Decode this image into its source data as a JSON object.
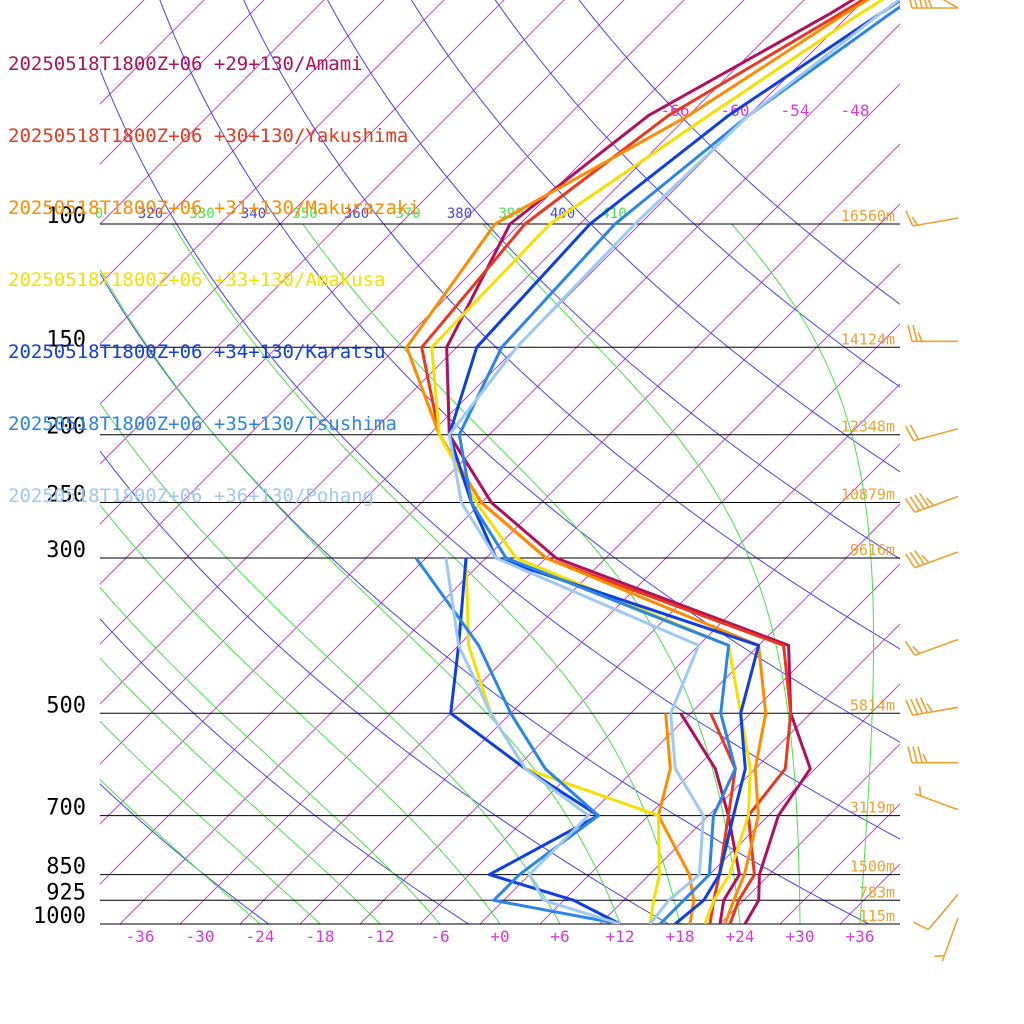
{
  "chart_data": {
    "type": "line",
    "chart_kind": "skew-T log-p sounding",
    "title": "",
    "legend_placement": "top-left",
    "series": [
      {
        "name": "20250518T1800Z+06 +29+130/Amami",
        "color": "#b0105a",
        "temperature": [
          [
            1000,
            24.5
          ],
          [
            925,
            23.5
          ],
          [
            850,
            21.0
          ],
          [
            700,
            17.0
          ],
          [
            600,
            15.5
          ],
          [
            500,
            8.0
          ],
          [
            400,
            1.0
          ],
          [
            300,
            -31.0
          ],
          [
            250,
            -43.0
          ],
          [
            200,
            -54.0
          ],
          [
            150,
            -63.0
          ],
          [
            100,
            -69.0
          ],
          [
            70,
            -66.0
          ],
          [
            50,
            -58.0
          ],
          [
            30,
            -48.0
          ],
          [
            20,
            -40.0
          ]
        ],
        "dewpoint": [
          [
            1000,
            22.0
          ],
          [
            925,
            20.0
          ],
          [
            850,
            19.0
          ],
          [
            700,
            12.0
          ],
          [
            600,
            6.0
          ],
          [
            500,
            -3.0
          ]
        ]
      },
      {
        "name": "20250518T1800Z+06 +30+130/Yakushima",
        "color": "#e8381f",
        "temperature": [
          [
            1000,
            23.0
          ],
          [
            925,
            21.5
          ],
          [
            850,
            20.5
          ],
          [
            700,
            14.0
          ],
          [
            600,
            13.0
          ],
          [
            500,
            8.0
          ],
          [
            400,
            0.5
          ],
          [
            300,
            -32.0
          ],
          [
            250,
            -44.0
          ],
          [
            200,
            -55.0
          ],
          [
            150,
            -65.5
          ],
          [
            100,
            -67.5
          ],
          [
            70,
            -64.0
          ],
          [
            50,
            -57.0
          ],
          [
            30,
            -47.0
          ],
          [
            20,
            -39.0
          ]
        ],
        "dewpoint": [
          [
            1000,
            21.0
          ],
          [
            925,
            19.0
          ],
          [
            850,
            17.0
          ],
          [
            700,
            12.0
          ],
          [
            600,
            8.0
          ],
          [
            500,
            0.0
          ]
        ]
      },
      {
        "name": "20250518T1800Z+06 +31+130/Makurazaki",
        "color": "#ff8c00",
        "temperature": [
          [
            1000,
            22.5
          ],
          [
            925,
            21.0
          ],
          [
            850,
            19.5
          ],
          [
            700,
            15.0
          ],
          [
            600,
            10.0
          ],
          [
            500,
            5.5
          ],
          [
            400,
            -2.0
          ],
          [
            300,
            -32.0
          ],
          [
            250,
            -44.0
          ],
          [
            200,
            -55.0
          ],
          [
            150,
            -67.0
          ],
          [
            100,
            -70.5
          ],
          [
            70,
            -62.0
          ],
          [
            50,
            -56.5
          ],
          [
            30,
            -47.0
          ],
          [
            20,
            -39.0
          ]
        ],
        "dewpoint": [
          [
            1000,
            19.0
          ],
          [
            925,
            17.0
          ],
          [
            850,
            14.0
          ],
          [
            700,
            5.0
          ],
          [
            600,
            1.5
          ],
          [
            500,
            -4.5
          ]
        ]
      },
      {
        "name": "20250518T1800Z+06 +33+130/Amakusa",
        "color": "#f5e000",
        "temperature": [
          [
            1000,
            20.5
          ],
          [
            925,
            19.0
          ],
          [
            850,
            18.0
          ],
          [
            700,
            14.0
          ],
          [
            600,
            9.5
          ],
          [
            500,
            3.0
          ],
          [
            400,
            -5.0
          ],
          [
            300,
            -35.0
          ],
          [
            250,
            -44.5
          ],
          [
            200,
            -55.0
          ],
          [
            150,
            -64.5
          ],
          [
            100,
            -65.0
          ],
          [
            70,
            -60.0
          ],
          [
            50,
            -55.0
          ],
          [
            30,
            -46.0
          ],
          [
            20,
            -38.0
          ]
        ],
        "dewpoint": [
          [
            1000,
            15.0
          ],
          [
            925,
            13.0
          ],
          [
            850,
            11.0
          ],
          [
            700,
            5.0
          ],
          [
            600,
            -13.0
          ],
          [
            500,
            -22.0
          ],
          [
            400,
            -31.0
          ],
          [
            300,
            -40.0
          ]
        ]
      },
      {
        "name": "20250518T1800Z+06 +34+130/Karatsu",
        "color": "#0f3fe0",
        "temperature": [
          [
            1000,
            17.5
          ],
          [
            925,
            18.0
          ],
          [
            850,
            17.0
          ],
          [
            700,
            12.5
          ],
          [
            600,
            9.0
          ],
          [
            500,
            3.0
          ],
          [
            400,
            -2.0
          ],
          [
            300,
            -37.0
          ],
          [
            250,
            -45.0
          ],
          [
            200,
            -54.0
          ],
          [
            150,
            -60.0
          ],
          [
            100,
            -61.0
          ],
          [
            70,
            -58.0
          ],
          [
            50,
            -53.0
          ],
          [
            30,
            -45.0
          ],
          [
            20,
            -37.5
          ]
        ],
        "dewpoint": [
          [
            1000,
            12.0
          ],
          [
            925,
            5.0
          ],
          [
            850,
            -6.0
          ],
          [
            700,
            -1.0
          ],
          [
            600,
            -13.0
          ],
          [
            500,
            -26.0
          ],
          [
            400,
            -32.0
          ],
          [
            300,
            -40.0
          ]
        ]
      },
      {
        "name": "20250518T1800Z+06 +35+130/Tsushima",
        "color": "#2a85e8",
        "temperature": [
          [
            1000,
            16.0
          ],
          [
            925,
            16.0
          ],
          [
            850,
            16.0
          ],
          [
            700,
            10.5
          ],
          [
            600,
            8.0
          ],
          [
            500,
            1.0
          ],
          [
            400,
            -5.0
          ],
          [
            300,
            -36.0
          ],
          [
            250,
            -45.0
          ],
          [
            200,
            -53.0
          ],
          [
            150,
            -57.5
          ],
          [
            100,
            -58.5
          ],
          [
            70,
            -56.0
          ],
          [
            50,
            -52.0
          ],
          [
            30,
            -45.0
          ],
          [
            20,
            -38.0
          ]
        ],
        "dewpoint": [
          [
            1000,
            12.0
          ],
          [
            925,
            -3.0
          ],
          [
            850,
            -3.0
          ],
          [
            700,
            -1.0
          ],
          [
            600,
            -11.0
          ],
          [
            500,
            -20.0
          ],
          [
            400,
            -30.0
          ],
          [
            300,
            -45.0
          ]
        ]
      },
      {
        "name": "20250518T1800Z+06 +36+130/Pohang",
        "color": "#9ec9f2",
        "temperature": [
          [
            1000,
            15.0
          ],
          [
            925,
            14.5
          ],
          [
            850,
            15.0
          ],
          [
            700,
            9.5
          ],
          [
            600,
            2.0
          ],
          [
            500,
            -4.0
          ],
          [
            400,
            -8.0
          ],
          [
            300,
            -37.0
          ],
          [
            250,
            -46.0
          ],
          [
            200,
            -54.0
          ],
          [
            150,
            -56.0
          ],
          [
            100,
            -56.5
          ],
          [
            70,
            -56.0
          ],
          [
            50,
            -53.0
          ],
          [
            30,
            -47.0
          ],
          [
            20,
            -40.0
          ]
        ],
        "dewpoint": [
          [
            1000,
            12.0
          ],
          [
            925,
            2.0
          ],
          [
            850,
            -2.0
          ],
          [
            700,
            -2.0
          ],
          [
            600,
            -13.0
          ],
          [
            500,
            -22.0
          ],
          [
            400,
            -32.0
          ],
          [
            300,
            -42.0
          ]
        ]
      }
    ],
    "pressure_labels": [
      {
        "p": 100,
        "label": "100"
      },
      {
        "p": 150,
        "label": "150"
      },
      {
        "p": 200,
        "label": "200"
      },
      {
        "p": 250,
        "label": "250"
      },
      {
        "p": 300,
        "label": "300"
      },
      {
        "p": 500,
        "label": "500"
      },
      {
        "p": 700,
        "label": "700"
      },
      {
        "p": 850,
        "label": "850"
      },
      {
        "p": 925,
        "label": "925"
      },
      {
        "p": 1000,
        "label": "1000"
      }
    ],
    "height_labels": [
      {
        "p": 100,
        "label": "16560m"
      },
      {
        "p": 150,
        "label": "14124m"
      },
      {
        "p": 200,
        "label": "12348m"
      },
      {
        "p": 250,
        "label": "10879m"
      },
      {
        "p": 300,
        "label": "9616m"
      },
      {
        "p": 500,
        "label": "5814m"
      },
      {
        "p": 700,
        "label": "3119m"
      },
      {
        "p": 850,
        "label": "1500m"
      },
      {
        "p": 925,
        "label": "783m"
      },
      {
        "p": 1000,
        "label": "115m"
      }
    ],
    "x_tick_labels": [
      {
        "t": -36,
        "label": "-36"
      },
      {
        "t": -30,
        "label": "-30"
      },
      {
        "t": -24,
        "label": "-24"
      },
      {
        "t": -18,
        "label": "-18"
      },
      {
        "t": -12,
        "label": "-12"
      },
      {
        "t": -6,
        "label": "-6"
      },
      {
        "t": 0,
        "label": "+0"
      },
      {
        "t": 6,
        "label": "+6"
      },
      {
        "t": 12,
        "label": "+12"
      },
      {
        "t": 18,
        "label": "+18"
      },
      {
        "t": 24,
        "label": "+24"
      },
      {
        "t": 30,
        "label": "+30"
      },
      {
        "t": 36,
        "label": "+36"
      }
    ],
    "upper_isotherm_labels": [
      {
        "t": -66,
        "label": "-66"
      },
      {
        "t": -60,
        "label": "-60"
      },
      {
        "t": -54,
        "label": "-54"
      },
      {
        "t": -48,
        "label": "-48"
      }
    ],
    "theta_labels": [
      "0",
      "320",
      "330",
      "340",
      "350",
      "360",
      "370",
      "380",
      "390",
      "400",
      "410"
    ],
    "xlim": [
      -40,
      40
    ],
    "pressure_range": [
      1000,
      20
    ],
    "wind_barbs": [
      {
        "p": 20,
        "speed_kt": 10,
        "dir_deg": 300
      },
      {
        "p": 50,
        "speed_kt": 45,
        "dir_deg": 270
      },
      {
        "p": 100,
        "speed_kt": 15,
        "dir_deg": 260
      },
      {
        "p": 150,
        "speed_kt": 25,
        "dir_deg": 270
      },
      {
        "p": 200,
        "speed_kt": 20,
        "dir_deg": 255
      },
      {
        "p": 250,
        "speed_kt": 45,
        "dir_deg": 250
      },
      {
        "p": 300,
        "speed_kt": 35,
        "dir_deg": 250
      },
      {
        "p": 400,
        "speed_kt": 15,
        "dir_deg": 250
      },
      {
        "p": 500,
        "speed_kt": 45,
        "dir_deg": 260
      },
      {
        "p": 600,
        "speed_kt": 35,
        "dir_deg": 270
      },
      {
        "p": 700,
        "speed_kt": 5,
        "dir_deg": 290
      },
      {
        "p": 925,
        "speed_kt": 10,
        "dir_deg": 220
      },
      {
        "p": 1000,
        "speed_kt": 5,
        "dir_deg": 200
      }
    ]
  }
}
